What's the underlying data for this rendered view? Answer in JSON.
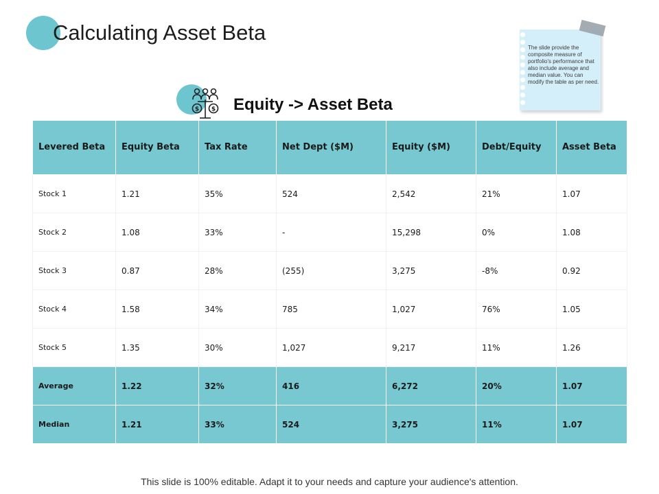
{
  "title": "Calculating Asset Beta",
  "subtitle": "Equity -> Asset Beta",
  "note": {
    "text": "The slide provide the composite measure of portfolio's performance that also include average and median value. You can modify the table as per need."
  },
  "icons": {
    "title_bullet": "circle-bullet-icon",
    "subtitle": "investors-money-scale-icon"
  },
  "colors": {
    "accent": "#78c8d1",
    "note_background": "#d5effa"
  },
  "table": {
    "headers": [
      "Levered Beta",
      "Equity Beta",
      "Tax Rate",
      "Net Dept ($M)",
      "Equity ($M)",
      "Debt/Equity",
      "Asset Beta"
    ],
    "rows": [
      [
        "Stock 1",
        "1.21",
        "35%",
        "524",
        "2,542",
        "21%",
        "1.07"
      ],
      [
        "Stock 2",
        "1.08",
        "33%",
        "-",
        "15,298",
        "0%",
        "1.08"
      ],
      [
        "Stock 3",
        "0.87",
        "28%",
        "(255)",
        "3,275",
        "-8%",
        "0.92"
      ],
      [
        "Stock 4",
        "1.58",
        "34%",
        "785",
        "1,027",
        "76%",
        "1.05"
      ],
      [
        "Stock 5",
        "1.35",
        "30%",
        "1,027",
        "9,217",
        "11%",
        "1.26"
      ]
    ],
    "summary": [
      [
        "Average",
        "1.22",
        "32%",
        "416",
        "6,272",
        "20%",
        "1.07"
      ],
      [
        "Median",
        "1.21",
        "33%",
        "524",
        "3,275",
        "11%",
        "1.07"
      ]
    ]
  },
  "footer": "This slide is 100% editable. Adapt it to your needs and capture your audience's attention."
}
